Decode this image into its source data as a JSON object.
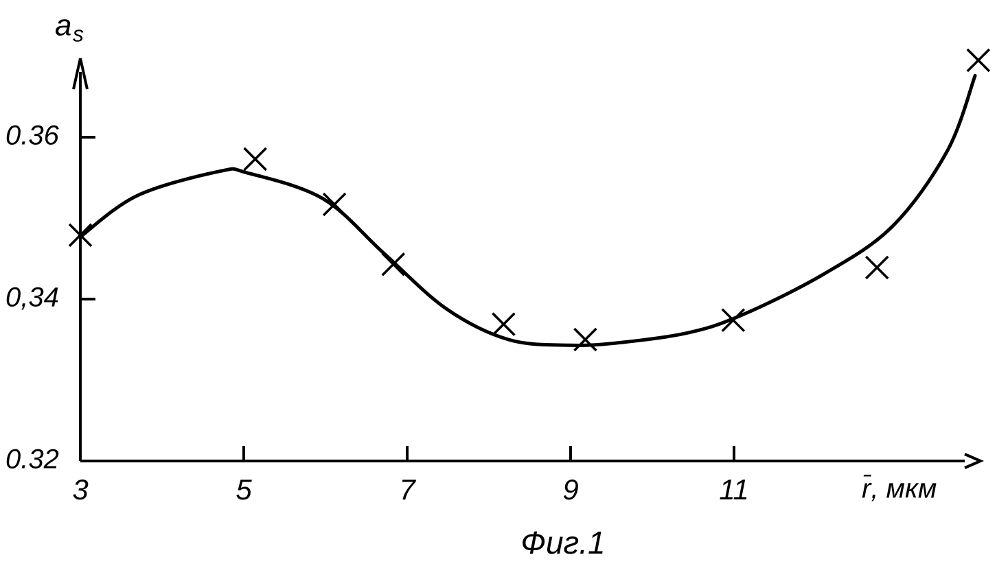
{
  "chart_data": {
    "type": "scatter",
    "y_label": "a",
    "y_label_sub": "s",
    "x_label": "r̄, мкм",
    "caption": "Фиг.1",
    "xlim": [
      3,
      14
    ],
    "xticks": [
      3,
      5,
      7,
      9,
      11
    ],
    "ylim": [
      0.32,
      0.37
    ],
    "yticks": [
      0.32,
      {
        "value": 0.34,
        "label": "0,34"
      },
      0.36
    ],
    "grid": false,
    "series": [
      {
        "color": "#000000",
        "marker": "x",
        "x": [
          3.0,
          5.14,
          6.11,
          6.83,
          8.18,
          9.18,
          10.99,
          12.75,
          13.99
        ],
        "values": [
          0.3479,
          0.3573,
          0.3517,
          0.3443,
          0.3369,
          0.335,
          0.3374,
          0.3439,
          0.3695
        ]
      },
      {
        "color": "#000000",
        "marker": "line",
        "x": [
          3.0,
          3.7,
          4.71,
          5.04,
          5.97,
          6.72,
          7.48,
          8.24,
          8.99,
          9.58,
          10.42,
          11.09,
          12.1,
          12.94,
          13.61,
          13.95
        ],
        "values": [
          0.3477,
          0.3528,
          0.3558,
          0.3556,
          0.3524,
          0.3456,
          0.3388,
          0.335,
          0.3343,
          0.3346,
          0.3358,
          0.338,
          0.3431,
          0.349,
          0.3583,
          0.3676
        ]
      }
    ]
  }
}
